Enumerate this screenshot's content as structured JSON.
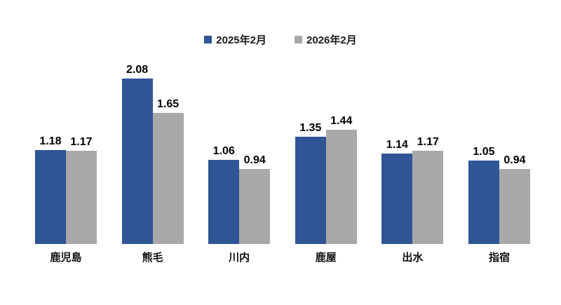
{
  "chart_data": {
    "type": "bar",
    "title": "",
    "xlabel": "",
    "ylabel": "",
    "categories": [
      "鹿児島",
      "熊毛",
      "川内",
      "鹿屋",
      "出水",
      "指宿"
    ],
    "series": [
      {
        "name": "2025年2月",
        "color": "#2F5596",
        "values": [
          1.18,
          2.08,
          1.06,
          1.35,
          1.14,
          1.05
        ]
      },
      {
        "name": "2026年2月",
        "color": "#A9A9A9",
        "values": [
          1.17,
          1.65,
          0.94,
          1.44,
          1.17,
          0.94
        ]
      }
    ],
    "ylim": [
      0,
      2.3
    ],
    "grid": false,
    "axes_visible": false,
    "data_labels": true,
    "data_label_color": "#000000",
    "legend_position": "top-center",
    "background_color": "#ffffff"
  }
}
